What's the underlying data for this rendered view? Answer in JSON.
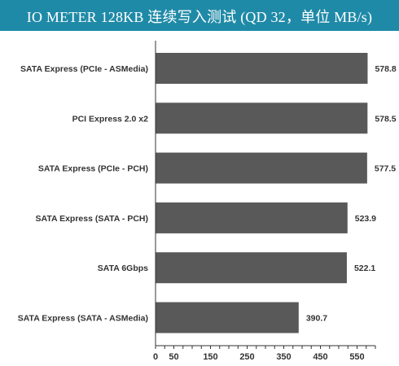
{
  "header": {
    "title": "IO METER 128KB 连续写入测试 (QD 32，单位 MB/s)"
  },
  "colors": {
    "header_bg": "#1f8aa7",
    "bar": "#595959",
    "axis": "#333333"
  },
  "chart_data": {
    "type": "bar",
    "orientation": "horizontal",
    "title": "IO METER 128KB 连续写入测试 (QD 32，单位 MB/s)",
    "categories": [
      "SATA Express (PCIe - ASMedia)",
      "PCI Express 2.0 x2",
      "SATA Express (PCIe - PCH)",
      "SATA Express (SATA - PCH)",
      "SATA 6Gbps",
      "SATA Express (SATA - ASMedia)"
    ],
    "values": [
      578.8,
      578.5,
      577.5,
      523.9,
      522.1,
      390.7
    ],
    "value_labels": [
      "578.8",
      "578.5",
      "577.5",
      "523.9",
      "522.1",
      "390.7"
    ],
    "xticks": [
      "0",
      "50",
      "150",
      "250",
      "350",
      "450",
      "550"
    ],
    "xtick_values": [
      0,
      50,
      150,
      250,
      350,
      450,
      550
    ],
    "xlim": [
      0,
      600
    ],
    "xlabel": "",
    "ylabel": "",
    "grid": false,
    "legend": "none"
  }
}
